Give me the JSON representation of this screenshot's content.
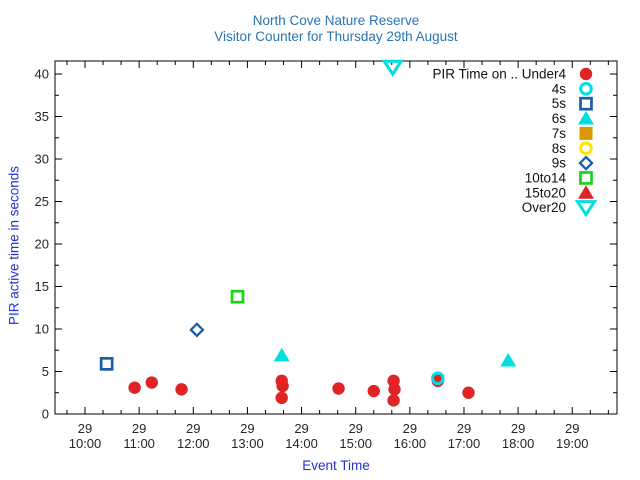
{
  "colors": {
    "title_blue": "#2a74b4",
    "axis_label_blue": "#2230dd",
    "tick_text": "#262626",
    "border": "#000000",
    "red": "#e02323",
    "cyan": "#00dfe0",
    "blue": "#1b5fa9",
    "orange": "#dd9800",
    "yellow": "#ffe400",
    "green": "#17d517"
  },
  "chart_data": {
    "type": "scatter",
    "title": "North Cove Nature Reserve",
    "subtitle": "Visitor Counter for Thursday 29th August",
    "xlabel": "Event Time",
    "ylabel": "PIR active time in seconds",
    "x_tick_day": "29",
    "x_tick_times": [
      "10:00",
      "11:00",
      "12:00",
      "13:00",
      "14:00",
      "15:00",
      "16:00",
      "17:00",
      "18:00",
      "19:00"
    ],
    "y_ticks": [
      0,
      5,
      10,
      15,
      20,
      25,
      30,
      35,
      40
    ],
    "xlim": [
      "09:27",
      "19:50"
    ],
    "ylim": [
      0,
      41.5
    ],
    "grid": false,
    "legend_position": "top-right-inside",
    "series": [
      {
        "name": "PIR Time on .. Under4",
        "marker": "circle-filled",
        "color": "#e02323",
        "points": [
          {
            "t": "10:55",
            "s": 3.1
          },
          {
            "t": "11:14",
            "s": 3.7
          },
          {
            "t": "11:47",
            "s": 2.9
          },
          {
            "t": "13:38",
            "s": 3.9
          },
          {
            "t": "13:39",
            "s": 3.3
          },
          {
            "t": "13:38",
            "s": 1.9
          },
          {
            "t": "14:41",
            "s": 3.0
          },
          {
            "t": "15:20",
            "s": 2.7
          },
          {
            "t": "15:42",
            "s": 3.9
          },
          {
            "t": "15:43",
            "s": 2.9
          },
          {
            "t": "15:42",
            "s": 1.6
          },
          {
            "t": "16:31",
            "s": 3.9
          },
          {
            "t": "17:05",
            "s": 2.5
          }
        ]
      },
      {
        "name": "4s",
        "marker": "circle-open",
        "color": "#00dfe0",
        "points": [
          {
            "t": "16:31",
            "s": 4.2
          }
        ]
      },
      {
        "name": "5s",
        "marker": "square-open",
        "color": "#1b5fa9",
        "points": [
          {
            "t": "10:24",
            "s": 5.9
          }
        ]
      },
      {
        "name": "6s",
        "marker": "triangle-filled",
        "color": "#00dfe0",
        "points": [
          {
            "t": "13:38",
            "s": 6.9
          },
          {
            "t": "17:49",
            "s": 6.3
          }
        ]
      },
      {
        "name": "7s",
        "marker": "square-filled",
        "color": "#dd9800",
        "points": []
      },
      {
        "name": "8s",
        "marker": "circle-open",
        "color": "#ffe400",
        "points": []
      },
      {
        "name": "9s",
        "marker": "diamond-open",
        "color": "#1b5fa9",
        "points": [
          {
            "t": "12:04",
            "s": 9.9
          }
        ]
      },
      {
        "name": "10to14",
        "marker": "square-open",
        "color": "#17d517",
        "points": [
          {
            "t": "12:49",
            "s": 13.8
          }
        ]
      },
      {
        "name": "15to20",
        "marker": "triangle-filled",
        "color": "#e02323",
        "points": []
      },
      {
        "name": "Over20",
        "marker": "triangle-down-open",
        "color": "#00dfe0",
        "points": [
          {
            "t": "15:41",
            "s": 40.8
          }
        ]
      }
    ]
  }
}
